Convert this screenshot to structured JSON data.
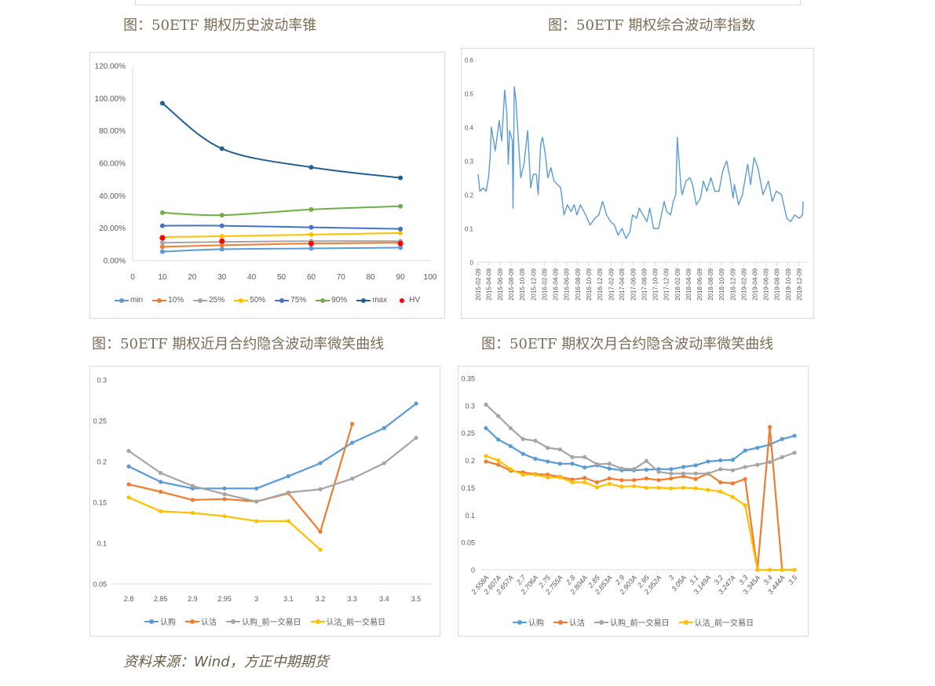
{
  "captions": {
    "chart1": "图：50ETF 期权历史波动率锥",
    "chart2": "图：50ETF 期权综合波动率指数",
    "chart3": "图：50ETF 期权近月合约隐含波动率微笑曲线",
    "chart4": "图：50ETF 期权次月合约隐含波动率微笑曲线"
  },
  "source": "资料来源：Wind，方正中期期货",
  "chart_data": [
    {
      "type": "line",
      "smooth": true,
      "x_ticks": [
        "0",
        "10",
        "20",
        "30",
        "40",
        "50",
        "60",
        "70",
        "80",
        "90",
        "100"
      ],
      "xlim": [
        0,
        100
      ],
      "y_ticks": [
        "0.00%",
        "20.00%",
        "40.00%",
        "60.00%",
        "80.00%",
        "100.00%",
        "120.00%"
      ],
      "ylim": [
        0,
        120
      ],
      "legend_position": "bottom",
      "x": [
        10,
        30,
        60,
        90
      ],
      "series": [
        {
          "name": "min",
          "color": "#5b9bd5",
          "values": [
            5.5,
            7.0,
            7.5,
            8.0
          ]
        },
        {
          "name": "10%",
          "color": "#ed7d31",
          "values": [
            8.5,
            9.5,
            10.5,
            11.0
          ]
        },
        {
          "name": "25%",
          "color": "#a5a5a5",
          "values": [
            11.0,
            11.5,
            12.0,
            12.0
          ]
        },
        {
          "name": "50%",
          "color": "#ffc000",
          "values": [
            14.5,
            15.0,
            16.0,
            17.0
          ]
        },
        {
          "name": "75%",
          "color": "#4472c4",
          "values": [
            21.5,
            21.5,
            20.5,
            19.5
          ]
        },
        {
          "name": "90%",
          "color": "#70ad47",
          "values": [
            29.5,
            28.0,
            31.5,
            33.5
          ]
        },
        {
          "name": "max",
          "color": "#255e91",
          "values": [
            97.0,
            69.0,
            57.5,
            51.0
          ]
        },
        {
          "name": "HV",
          "color": "#ff0000",
          "markers_only": true,
          "values": [
            14.0,
            12.0,
            10.5,
            10.5
          ]
        }
      ]
    },
    {
      "type": "line",
      "x_ticks": [
        "2015-02-09",
        "2015-04-09",
        "2015-06-09",
        "2015-08-09",
        "2015-10-09",
        "2015-12-09",
        "2016-02-09",
        "2016-04-09",
        "2016-06-09",
        "2016-08-09",
        "2016-10-09",
        "2016-12-09",
        "2017-02-09",
        "2017-04-09",
        "2017-06-09",
        "2017-08-09",
        "2017-10-09",
        "2017-12-09",
        "2018-02-09",
        "2018-04-09",
        "2018-06-09",
        "2018-08-09",
        "2018-10-09",
        "2018-12-09",
        "2019-02-09",
        "2019-04-09",
        "2019-06-09",
        "2019-08-09",
        "2019-10-09",
        "2019-12-09"
      ],
      "y_ticks": [
        "0",
        "0.1",
        "0.2",
        "0.3",
        "0.4",
        "0.5",
        "0.6"
      ],
      "ylim": [
        0,
        0.6
      ],
      "series": [
        {
          "color": "#5b9bd5",
          "points": [
            [
              "2015-02-09",
              0.26
            ],
            [
              "2015-02-19",
              0.21
            ],
            [
              "2015-03-10",
              0.22
            ],
            [
              "2015-03-25",
              0.21
            ],
            [
              "2015-04-07",
              0.25
            ],
            [
              "2015-04-16",
              0.31
            ],
            [
              "2015-04-23",
              0.4
            ],
            [
              "2015-05-14",
              0.33
            ],
            [
              "2015-06-05",
              0.42
            ],
            [
              "2015-06-19",
              0.36
            ],
            [
              "2015-07-05",
              0.51
            ],
            [
              "2015-07-17",
              0.44
            ],
            [
              "2015-07-25",
              0.29
            ],
            [
              "2015-08-01",
              0.39
            ],
            [
              "2015-08-16",
              0.36
            ],
            [
              "2015-08-20",
              0.16
            ],
            [
              "2015-08-27",
              0.52
            ],
            [
              "2015-09-05",
              0.48
            ],
            [
              "2015-09-14",
              0.4
            ],
            [
              "2015-10-01",
              0.25
            ],
            [
              "2015-10-19",
              0.29
            ],
            [
              "2015-11-08",
              0.39
            ],
            [
              "2015-11-25",
              0.22
            ],
            [
              "2015-12-09",
              0.26
            ],
            [
              "2015-12-26",
              0.26
            ],
            [
              "2016-01-05",
              0.2
            ],
            [
              "2016-01-19",
              0.35
            ],
            [
              "2016-01-29",
              0.37
            ],
            [
              "2016-02-13",
              0.32
            ],
            [
              "2016-02-27",
              0.25
            ],
            [
              "2016-03-15",
              0.28
            ],
            [
              "2016-04-02",
              0.24
            ],
            [
              "2016-05-08",
              0.22
            ],
            [
              "2016-05-26",
              0.14
            ],
            [
              "2016-06-13",
              0.17
            ],
            [
              "2016-07-04",
              0.15
            ],
            [
              "2016-07-21",
              0.17
            ],
            [
              "2016-08-05",
              0.14
            ],
            [
              "2016-08-24",
              0.17
            ],
            [
              "2016-09-22",
              0.14
            ],
            [
              "2016-10-16",
              0.11
            ],
            [
              "2016-11-11",
              0.13
            ],
            [
              "2016-12-03",
              0.14
            ],
            [
              "2016-12-24",
              0.18
            ],
            [
              "2017-01-15",
              0.14
            ],
            [
              "2017-02-06",
              0.12
            ],
            [
              "2017-02-27",
              0.11
            ],
            [
              "2017-03-19",
              0.08
            ],
            [
              "2017-04-10",
              0.1
            ],
            [
              "2017-05-01",
              0.07
            ],
            [
              "2017-05-23",
              0.09
            ],
            [
              "2017-06-07",
              0.14
            ],
            [
              "2017-06-28",
              0.13
            ],
            [
              "2017-07-14",
              0.16
            ],
            [
              "2017-08-03",
              0.14
            ],
            [
              "2017-08-25",
              0.12
            ],
            [
              "2017-09-09",
              0.16
            ],
            [
              "2017-09-30",
              0.1
            ],
            [
              "2017-10-28",
              0.1
            ],
            [
              "2017-11-27",
              0.18
            ],
            [
              "2017-12-11",
              0.15
            ],
            [
              "2018-01-02",
              0.14
            ],
            [
              "2018-01-16",
              0.18
            ],
            [
              "2018-01-30",
              0.2
            ],
            [
              "2018-02-07",
              0.37
            ],
            [
              "2018-02-28",
              0.22
            ],
            [
              "2018-03-06",
              0.2
            ],
            [
              "2018-03-27",
              0.24
            ],
            [
              "2018-04-18",
              0.25
            ],
            [
              "2018-05-02",
              0.23
            ],
            [
              "2018-05-23",
              0.17
            ],
            [
              "2018-06-15",
              0.19
            ],
            [
              "2018-07-01",
              0.24
            ],
            [
              "2018-07-20",
              0.21
            ],
            [
              "2018-08-11",
              0.25
            ],
            [
              "2018-09-02",
              0.21
            ],
            [
              "2018-09-24",
              0.21
            ],
            [
              "2018-10-15",
              0.27
            ],
            [
              "2018-11-06",
              0.3
            ],
            [
              "2018-11-27",
              0.24
            ],
            [
              "2018-12-11",
              0.19
            ],
            [
              "2018-12-18",
              0.23
            ],
            [
              "2019-01-10",
              0.17
            ],
            [
              "2019-01-31",
              0.2
            ],
            [
              "2019-03-01",
              0.29
            ],
            [
              "2019-03-17",
              0.23
            ],
            [
              "2019-04-05",
              0.31
            ],
            [
              "2019-04-26",
              0.28
            ],
            [
              "2019-05-24",
              0.2
            ],
            [
              "2019-06-23",
              0.24
            ],
            [
              "2019-07-14",
              0.18
            ],
            [
              "2019-08-05",
              0.21
            ],
            [
              "2019-09-03",
              0.2
            ],
            [
              "2019-10-02",
              0.13
            ],
            [
              "2019-10-23",
              0.12
            ],
            [
              "2019-11-14",
              0.14
            ],
            [
              "2019-12-09",
              0.13
            ],
            [
              "2019-12-27",
              0.14
            ],
            [
              "2019-12-31",
              0.18
            ]
          ]
        }
      ]
    },
    {
      "type": "line",
      "categories": [
        "2.8",
        "2.85",
        "2.9",
        "2.95",
        "3",
        "3.1",
        "3.2",
        "3.3",
        "3.4",
        "3.5"
      ],
      "y_ticks": [
        "0.05",
        "0.1",
        "0.15",
        "0.2",
        "0.25",
        "0.3"
      ],
      "ylim": [
        0.05,
        0.3
      ],
      "legend_position": "bottom",
      "series": [
        {
          "name": "认购",
          "color": "#5b9bd5",
          "values": [
            0.194,
            0.175,
            0.167,
            0.167,
            0.167,
            0.182,
            0.198,
            0.223,
            0.241,
            0.271
          ]
        },
        {
          "name": "认沽",
          "color": "#ed7d31",
          "values": [
            0.172,
            0.163,
            0.153,
            0.154,
            0.151,
            0.161,
            0.114,
            0.246,
            null,
            null
          ]
        },
        {
          "name": "认购_前一交易日",
          "color": "#a5a5a5",
          "values": [
            0.213,
            0.186,
            0.17,
            0.16,
            0.151,
            0.162,
            0.166,
            0.179,
            0.198,
            0.229
          ]
        },
        {
          "name": "认沽_前一交易日",
          "color": "#ffc000",
          "values": [
            0.156,
            0.139,
            0.137,
            0.133,
            0.127,
            0.127,
            0.092,
            null,
            null,
            null
          ]
        }
      ]
    },
    {
      "type": "line",
      "categories": [
        "2.558A",
        "2.607A",
        "2.657A",
        "2.7",
        "2.706A",
        "2.75",
        "2.755A",
        "2.8",
        "2.804A",
        "2.85",
        "2.853A",
        "2.9",
        "2.903A",
        "2.95",
        "2.952A",
        "3",
        "3.05A",
        "3.1",
        "3.149A",
        "3.2",
        "3.247A",
        "3.3",
        "3.345A",
        "3.4",
        "3.444A",
        "3.5"
      ],
      "y_ticks": [
        "0",
        "0.05",
        "0.1",
        "0.15",
        "0.2",
        "0.25",
        "0.3",
        "0.35"
      ],
      "ylim": [
        0,
        0.35
      ],
      "legend_position": "bottom",
      "series": [
        {
          "name": "认购",
          "color": "#5b9bd5",
          "values": [
            0.259,
            0.238,
            0.226,
            0.212,
            0.203,
            0.198,
            0.194,
            0.194,
            0.187,
            0.191,
            0.185,
            0.182,
            0.182,
            0.183,
            0.184,
            0.184,
            0.188,
            0.191,
            0.198,
            0.2,
            0.201,
            0.218,
            0.223,
            0.229,
            0.239,
            0.245
          ]
        },
        {
          "name": "认沽",
          "color": "#ed7d31",
          "values": [
            0.198,
            0.192,
            0.181,
            0.178,
            0.175,
            0.174,
            0.17,
            0.165,
            0.168,
            0.16,
            0.167,
            0.164,
            0.164,
            0.167,
            0.164,
            0.167,
            0.171,
            0.166,
            0.176,
            0.16,
            0.158,
            0.166,
            0,
            0.261,
            0,
            0
          ]
        },
        {
          "name": "认购_前一交易日",
          "color": "#a5a5a5",
          "values": [
            0.302,
            0.281,
            0.259,
            0.239,
            0.236,
            0.223,
            0.22,
            0.206,
            0.206,
            0.193,
            0.194,
            0.185,
            0.184,
            0.199,
            0.179,
            0.176,
            0.176,
            0.176,
            0.176,
            0.184,
            0.182,
            0.188,
            0.192,
            0.197,
            0.206,
            0.214
          ]
        },
        {
          "name": "认沽_前一交易日",
          "color": "#ffc000",
          "values": [
            0.208,
            0.2,
            0.184,
            0.174,
            0.174,
            0.169,
            0.169,
            0.16,
            0.16,
            0.151,
            0.157,
            0.152,
            0.153,
            0.15,
            0.15,
            0.149,
            0.15,
            0.149,
            0.146,
            0.143,
            0.133,
            0.118,
            0,
            0,
            0,
            0
          ]
        }
      ]
    }
  ]
}
